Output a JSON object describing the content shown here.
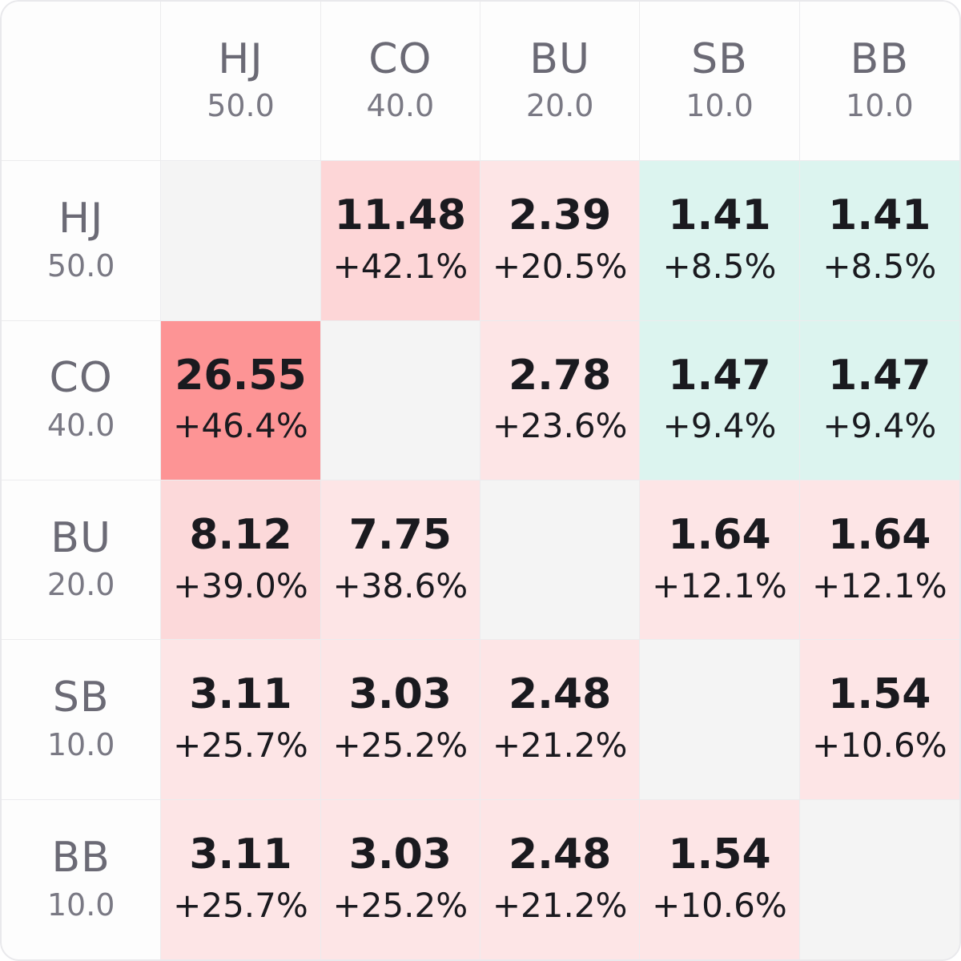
{
  "chart_data": {
    "type": "heatmap",
    "columns": [
      {
        "position": "HJ",
        "stack": "50.0"
      },
      {
        "position": "CO",
        "stack": "40.0"
      },
      {
        "position": "BU",
        "stack": "20.0"
      },
      {
        "position": "SB",
        "stack": "10.0"
      },
      {
        "position": "BB",
        "stack": "10.0"
      }
    ],
    "rows": [
      {
        "position": "HJ",
        "stack": "50.0"
      },
      {
        "position": "CO",
        "stack": "40.0"
      },
      {
        "position": "BU",
        "stack": "20.0"
      },
      {
        "position": "SB",
        "stack": "10.0"
      },
      {
        "position": "BB",
        "stack": "10.0"
      }
    ],
    "cells": [
      [
        null,
        {
          "value": "11.48",
          "pct": "+42.1%",
          "color": "#fdd6d7"
        },
        {
          "value": "2.39",
          "pct": "+20.5%",
          "color": "#fde5e6"
        },
        {
          "value": "1.41",
          "pct": "+8.5%",
          "color": "#dcf4ef"
        },
        {
          "value": "1.41",
          "pct": "+8.5%",
          "color": "#dcf4ef"
        }
      ],
      [
        {
          "value": "26.55",
          "pct": "+46.4%",
          "color": "#fd9495"
        },
        null,
        {
          "value": "2.78",
          "pct": "+23.6%",
          "color": "#fde5e6"
        },
        {
          "value": "1.47",
          "pct": "+9.4%",
          "color": "#dcf4ef"
        },
        {
          "value": "1.47",
          "pct": "+9.4%",
          "color": "#dcf4ef"
        }
      ],
      [
        {
          "value": "8.12",
          "pct": "+39.0%",
          "color": "#fcd9da"
        },
        {
          "value": "7.75",
          "pct": "+38.6%",
          "color": "#fde5e6"
        },
        null,
        {
          "value": "1.64",
          "pct": "+12.1%",
          "color": "#fde5e6"
        },
        {
          "value": "1.64",
          "pct": "+12.1%",
          "color": "#fde5e6"
        }
      ],
      [
        {
          "value": "3.11",
          "pct": "+25.7%",
          "color": "#fde5e6"
        },
        {
          "value": "3.03",
          "pct": "+25.2%",
          "color": "#fde5e6"
        },
        {
          "value": "2.48",
          "pct": "+21.2%",
          "color": "#fde5e6"
        },
        null,
        {
          "value": "1.54",
          "pct": "+10.6%",
          "color": "#fde5e6"
        }
      ],
      [
        {
          "value": "3.11",
          "pct": "+25.7%",
          "color": "#fde5e6"
        },
        {
          "value": "3.03",
          "pct": "+25.2%",
          "color": "#fde5e6"
        },
        {
          "value": "2.48",
          "pct": "+21.2%",
          "color": "#fde5e6"
        },
        {
          "value": "1.54",
          "pct": "+10.6%",
          "color": "#fde5e6"
        },
        null
      ]
    ],
    "diagonal_color": "#f4f4f4",
    "header_color": "#fdfdfd"
  }
}
